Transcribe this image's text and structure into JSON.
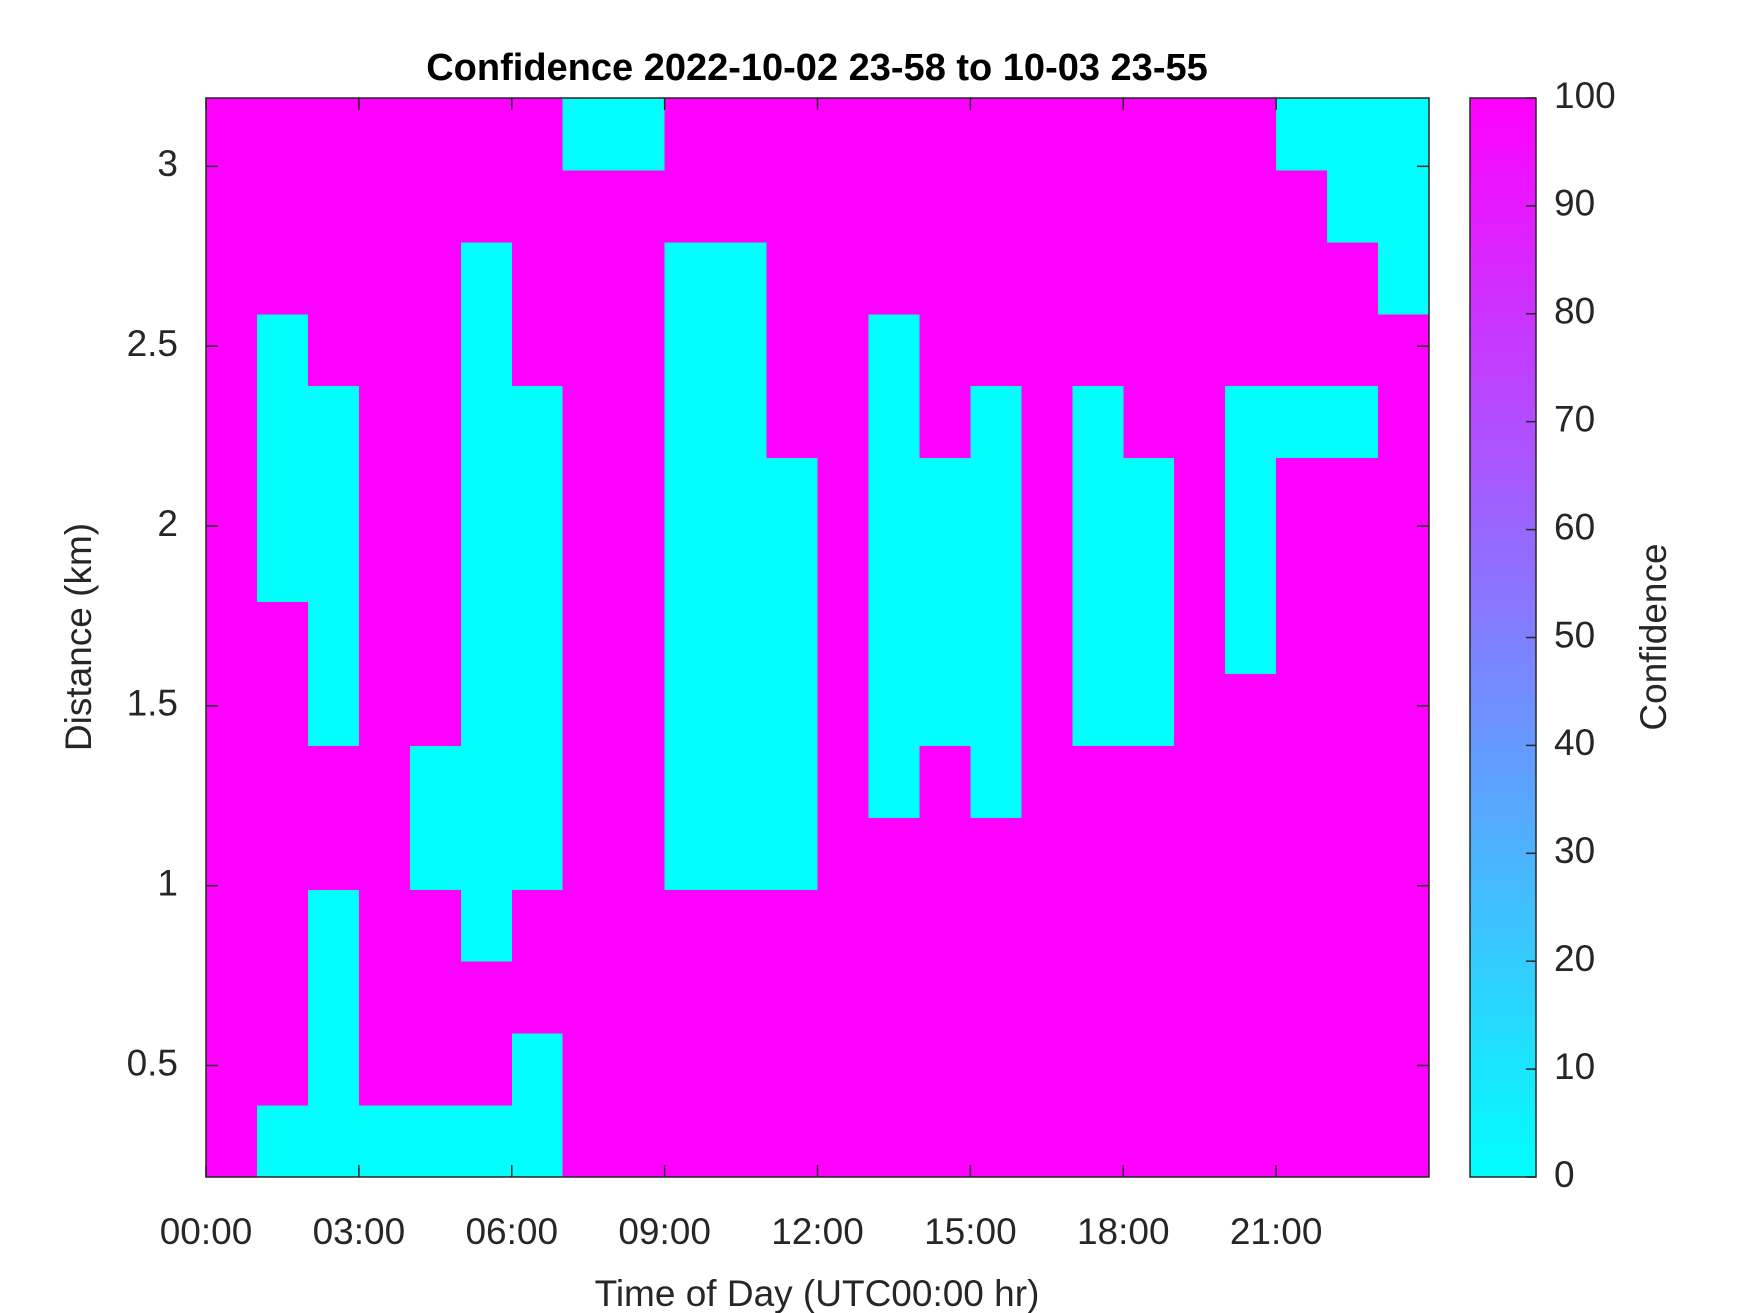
{
  "chart_data": {
    "type": "heatmap",
    "title": "Confidence 2022-10-02 23-58 to 10-03 23-55",
    "xlabel": "Time of Day (UTC00:00 hr)",
    "ylabel": "Distance (km)",
    "colorbar_label": "Confidence",
    "x": [
      0.5,
      1.5,
      2.5,
      3.5,
      4.5,
      5.5,
      6.5,
      7.5,
      8.5,
      9.5,
      10.5,
      11.5,
      12.5,
      13.5,
      14.5,
      15.5,
      16.5,
      17.5,
      18.5,
      19.5,
      20.5,
      21.5,
      22.5,
      23.5
    ],
    "y": [
      0.29,
      0.49,
      0.69,
      0.89,
      1.09,
      1.29,
      1.49,
      1.69,
      1.89,
      2.09,
      2.29,
      2.49,
      2.69,
      2.89,
      3.09
    ],
    "z": [
      [
        100,
        0,
        0,
        0,
        0,
        0,
        0,
        100,
        100,
        100,
        100,
        100,
        100,
        100,
        100,
        100,
        100,
        100,
        100,
        100,
        100,
        100,
        100,
        100
      ],
      [
        100,
        100,
        0,
        100,
        100,
        100,
        0,
        100,
        100,
        100,
        100,
        100,
        100,
        100,
        100,
        100,
        100,
        100,
        100,
        100,
        100,
        100,
        100,
        100
      ],
      [
        100,
        100,
        0,
        100,
        100,
        100,
        100,
        100,
        100,
        100,
        100,
        100,
        100,
        100,
        100,
        100,
        100,
        100,
        100,
        100,
        100,
        100,
        100,
        100
      ],
      [
        100,
        100,
        0,
        100,
        100,
        0,
        100,
        100,
        100,
        100,
        100,
        100,
        100,
        100,
        100,
        100,
        100,
        100,
        100,
        100,
        100,
        100,
        100,
        100
      ],
      [
        100,
        100,
        100,
        100,
        0,
        0,
        0,
        100,
        100,
        0,
        0,
        0,
        100,
        100,
        100,
        100,
        100,
        100,
        100,
        100,
        100,
        100,
        100,
        100
      ],
      [
        100,
        100,
        100,
        100,
        0,
        0,
        0,
        100,
        100,
        0,
        0,
        0,
        100,
        0,
        100,
        0,
        100,
        100,
        100,
        100,
        100,
        100,
        100,
        100
      ],
      [
        100,
        100,
        0,
        100,
        100,
        0,
        0,
        100,
        100,
        0,
        0,
        0,
        100,
        0,
        0,
        0,
        100,
        0,
        0,
        100,
        100,
        100,
        100,
        100
      ],
      [
        100,
        100,
        0,
        100,
        100,
        0,
        0,
        100,
        100,
        0,
        0,
        0,
        100,
        0,
        0,
        0,
        100,
        0,
        0,
        100,
        0,
        100,
        100,
        100
      ],
      [
        100,
        0,
        0,
        100,
        100,
        0,
        0,
        100,
        100,
        0,
        0,
        0,
        100,
        0,
        0,
        0,
        100,
        0,
        0,
        100,
        0,
        100,
        100,
        100
      ],
      [
        100,
        0,
        0,
        100,
        100,
        0,
        0,
        100,
        100,
        0,
        0,
        0,
        100,
        0,
        0,
        0,
        100,
        0,
        0,
        100,
        0,
        100,
        100,
        100
      ],
      [
        100,
        0,
        0,
        100,
        100,
        0,
        0,
        100,
        100,
        0,
        0,
        100,
        100,
        0,
        100,
        0,
        100,
        0,
        100,
        100,
        0,
        0,
        0,
        100
      ],
      [
        100,
        0,
        100,
        100,
        100,
        0,
        100,
        100,
        100,
        0,
        0,
        100,
        100,
        0,
        100,
        100,
        100,
        100,
        100,
        100,
        100,
        100,
        100,
        100
      ],
      [
        100,
        100,
        100,
        100,
        100,
        0,
        100,
        100,
        100,
        0,
        0,
        100,
        100,
        100,
        100,
        100,
        100,
        100,
        100,
        100,
        100,
        100,
        100,
        0
      ],
      [
        100,
        100,
        100,
        100,
        100,
        100,
        100,
        100,
        100,
        100,
        100,
        100,
        100,
        100,
        100,
        100,
        100,
        100,
        100,
        100,
        100,
        100,
        0,
        0
      ],
      [
        100,
        100,
        100,
        100,
        100,
        100,
        100,
        0,
        0,
        100,
        100,
        100,
        100,
        100,
        100,
        100,
        100,
        100,
        100,
        100,
        100,
        0,
        0,
        0
      ]
    ],
    "colormap": [
      "#00ffff",
      "#ff00ff"
    ],
    "xlim": [
      0,
      24
    ],
    "ylim": [
      0.19,
      3.19
    ],
    "clim": [
      0,
      100
    ],
    "xticks": [
      {
        "value": 0,
        "label": "00:00"
      },
      {
        "value": 3,
        "label": "03:00"
      },
      {
        "value": 6,
        "label": "06:00"
      },
      {
        "value": 9,
        "label": "09:00"
      },
      {
        "value": 12,
        "label": "12:00"
      },
      {
        "value": 15,
        "label": "15:00"
      },
      {
        "value": 18,
        "label": "18:00"
      },
      {
        "value": 21,
        "label": "21:00"
      }
    ],
    "yticks": [
      0.5,
      1,
      1.5,
      2,
      2.5,
      3
    ],
    "cticks": [
      0,
      10,
      20,
      30,
      40,
      50,
      60,
      70,
      80,
      90,
      100
    ]
  }
}
